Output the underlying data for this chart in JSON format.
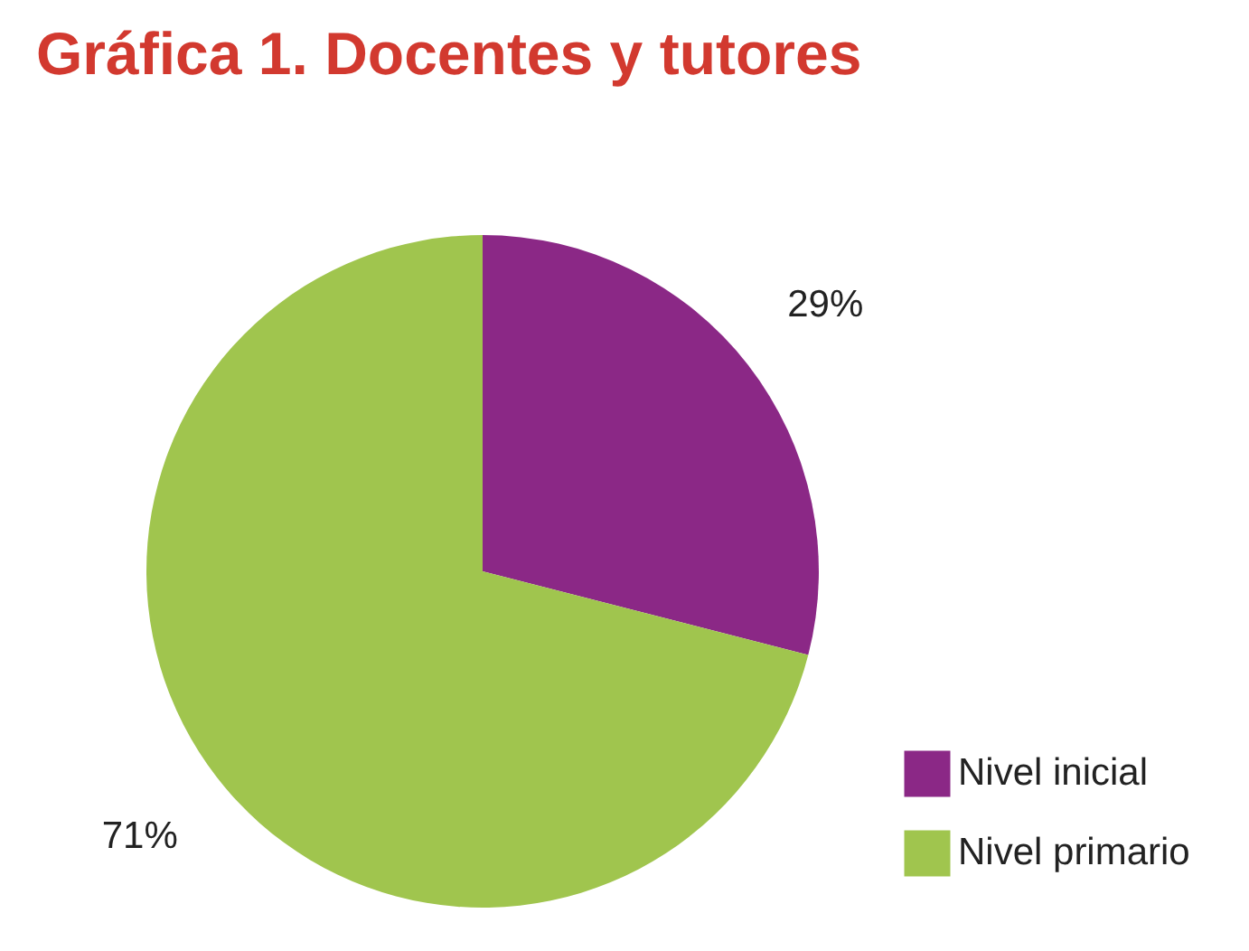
{
  "chart_data": {
    "type": "pie",
    "title": "Gráfica 1. Docentes y tutores",
    "categories": [
      "Nivel inicial",
      "Nivel primario"
    ],
    "values": [
      29,
      71
    ],
    "colors": [
      "#8b2886",
      "#a0c54e"
    ],
    "value_labels": [
      "29%",
      "71%"
    ],
    "legend": "bottom right"
  }
}
